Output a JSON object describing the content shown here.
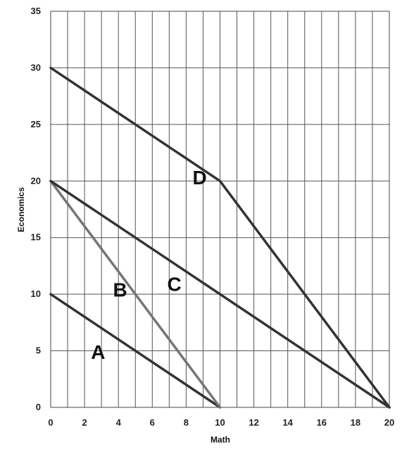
{
  "chart_data": {
    "type": "line",
    "title": "",
    "xlabel": "Math",
    "ylabel": "Economics",
    "xlim": [
      0,
      20
    ],
    "ylim": [
      0,
      35
    ],
    "grid": true,
    "x_ticks": [
      "0",
      "2",
      "4",
      "6",
      "8",
      "10",
      "12",
      "14",
      "16",
      "18",
      "20"
    ],
    "y_ticks": [
      "0",
      "5",
      "10",
      "15",
      "20",
      "25",
      "30",
      "35"
    ],
    "series": [
      {
        "name": "A",
        "points": [
          [
            0,
            10
          ],
          [
            10,
            0
          ]
        ],
        "label_at": [
          2.8,
          4.3
        ],
        "color": "#333333"
      },
      {
        "name": "B",
        "points": [
          [
            0,
            20
          ],
          [
            10,
            0
          ]
        ],
        "label_at": [
          4.1,
          9.8
        ],
        "color": "#757575"
      },
      {
        "name": "C",
        "points": [
          [
            0,
            20
          ],
          [
            20,
            0
          ]
        ],
        "label_at": [
          7.3,
          10.3
        ],
        "color": "#333333"
      },
      {
        "name": "D",
        "points": [
          [
            0,
            30
          ],
          [
            10,
            20
          ],
          [
            20,
            0
          ]
        ],
        "label_at": [
          8.8,
          19.7
        ],
        "color": "#333333"
      }
    ]
  }
}
